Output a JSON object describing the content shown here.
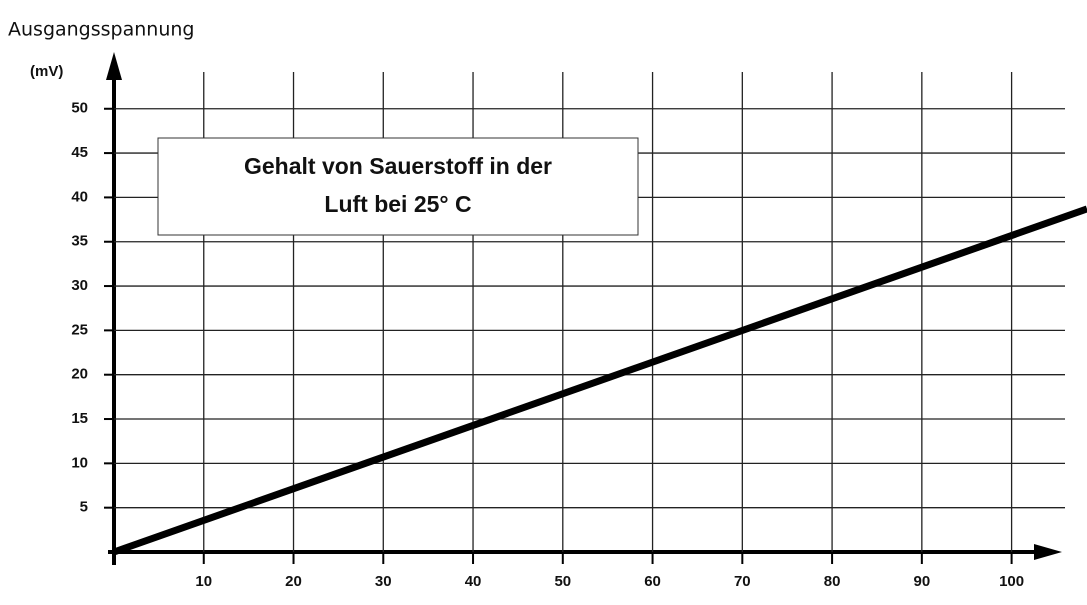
{
  "chart_data": {
    "type": "line",
    "title": "Ausgangsspannung",
    "y_label": "(mV)",
    "annotation": [
      "Gehalt von Sauerstoff in der",
      "Luft bei 25° C"
    ],
    "x": [
      0,
      108.4
    ],
    "series": [
      {
        "color": "#000000",
        "values": [
          0,
          38.7
        ]
      }
    ],
    "xlim": [
      0,
      108.4
    ],
    "ylim": [
      0,
      55.5
    ],
    "xticks": [
      10,
      20,
      30,
      40,
      50,
      60,
      70,
      80,
      90,
      100
    ],
    "yticks": [
      5,
      10,
      15,
      20,
      25,
      30,
      35,
      40,
      45,
      50
    ],
    "grid": true
  }
}
